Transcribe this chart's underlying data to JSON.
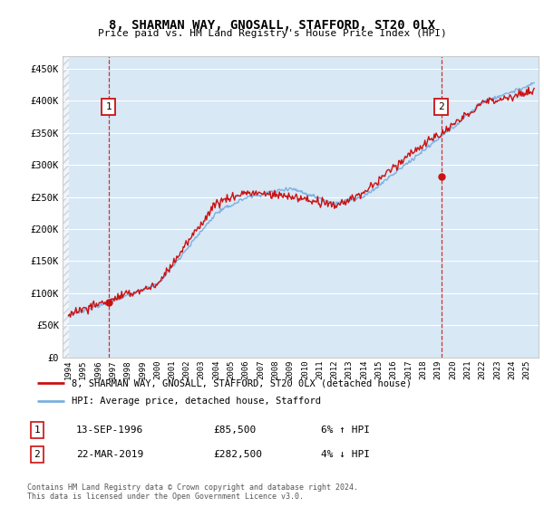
{
  "title": "8, SHARMAN WAY, GNOSALL, STAFFORD, ST20 0LX",
  "subtitle": "Price paid vs. HM Land Registry's House Price Index (HPI)",
  "ylim": [
    0,
    470000
  ],
  "xlim_start": 1993.6,
  "xlim_end": 2025.8,
  "yticks": [
    0,
    50000,
    100000,
    150000,
    200000,
    250000,
    300000,
    350000,
    400000,
    450000
  ],
  "ytick_labels": [
    "£0",
    "£50K",
    "£100K",
    "£150K",
    "£200K",
    "£250K",
    "£300K",
    "£350K",
    "£400K",
    "£450K"
  ],
  "background_color": "#d8e8f5",
  "hpi_color": "#7ab0e0",
  "price_color": "#cc1111",
  "sale1_date": 1996.71,
  "sale1_price": 85500,
  "sale2_date": 2019.22,
  "sale2_price": 282500,
  "legend_property": "8, SHARMAN WAY, GNOSALL, STAFFORD, ST20 0LX (detached house)",
  "legend_hpi": "HPI: Average price, detached house, Stafford",
  "note1_date": "13-SEP-1996",
  "note1_price": "£85,500",
  "note1_pct": "6% ↑ HPI",
  "note2_date": "22-MAR-2019",
  "note2_price": "£282,500",
  "note2_pct": "4% ↓ HPI",
  "footer": "Contains HM Land Registry data © Crown copyright and database right 2024.\nThis data is licensed under the Open Government Licence v3.0."
}
